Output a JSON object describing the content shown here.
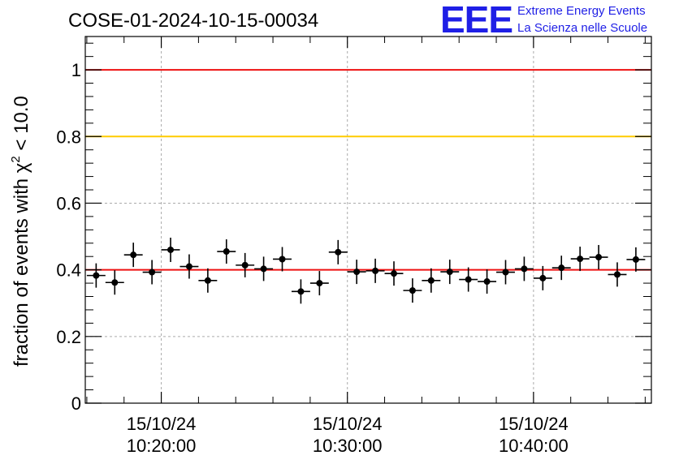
{
  "header": {
    "title": "COSE-01-2024-10-15-00034",
    "logo": {
      "letters": "EEE",
      "line1": "Extreme Energy Events",
      "line2": "La Scienza nelle Scuole",
      "color": "#1f1fe6"
    }
  },
  "chart_data": {
    "type": "scatter",
    "title": "COSE-01-2024-10-15-00034",
    "xlabel": "",
    "ylabel": "fraction of events with",
    "ylabel_symbol": "χ",
    "ylabel_sup": "2",
    "ylabel_tail": "< 10.0",
    "ylim": [
      0,
      1.1
    ],
    "yticks": [
      {
        "value": 0,
        "label": "0"
      },
      {
        "value": 0.2,
        "label": "0.2"
      },
      {
        "value": 0.4,
        "label": "0.4"
      },
      {
        "value": 0.6,
        "label": "0.6"
      },
      {
        "value": 0.8,
        "label": "0.8"
      },
      {
        "value": 1,
        "label": "1"
      }
    ],
    "xlim": [
      "2024-10-15 10:15:55",
      "2024-10-15 10:46:20"
    ],
    "xticks": [
      {
        "time": "2024-10-15 10:20:00",
        "date_label": "15/10/24",
        "time_label": "10:20:00"
      },
      {
        "time": "2024-10-15 10:30:00",
        "date_label": "15/10/24",
        "time_label": "10:30:00"
      },
      {
        "time": "2024-10-15 10:40:00",
        "date_label": "15/10/24",
        "time_label": "10:40:00"
      }
    ],
    "grid": true,
    "reference_lines": [
      {
        "y": 1.0,
        "color": "#ee1111"
      },
      {
        "y": 0.8,
        "color": "#ffcc00"
      },
      {
        "y": 0.4,
        "color": "#ee1111"
      }
    ],
    "bin_width_seconds": 60,
    "series": [
      {
        "color": "#000000",
        "points": [
          {
            "x": "2024-10-15 10:16:30",
            "y": 0.383
          },
          {
            "x": "2024-10-15 10:17:30",
            "y": 0.362
          },
          {
            "x": "2024-10-15 10:18:30",
            "y": 0.445
          },
          {
            "x": "2024-10-15 10:19:30",
            "y": 0.393
          },
          {
            "x": "2024-10-15 10:20:30",
            "y": 0.46
          },
          {
            "x": "2024-10-15 10:21:30",
            "y": 0.41
          },
          {
            "x": "2024-10-15 10:22:30",
            "y": 0.368
          },
          {
            "x": "2024-10-15 10:23:30",
            "y": 0.455
          },
          {
            "x": "2024-10-15 10:24:30",
            "y": 0.414
          },
          {
            "x": "2024-10-15 10:25:30",
            "y": 0.403
          },
          {
            "x": "2024-10-15 10:26:30",
            "y": 0.432
          },
          {
            "x": "2024-10-15 10:27:30",
            "y": 0.335
          },
          {
            "x": "2024-10-15 10:28:30",
            "y": 0.36
          },
          {
            "x": "2024-10-15 10:29:30",
            "y": 0.453
          },
          {
            "x": "2024-10-15 10:30:30",
            "y": 0.394
          },
          {
            "x": "2024-10-15 10:31:30",
            "y": 0.397
          },
          {
            "x": "2024-10-15 10:32:30",
            "y": 0.389
          },
          {
            "x": "2024-10-15 10:33:30",
            "y": 0.338
          },
          {
            "x": "2024-10-15 10:34:30",
            "y": 0.368
          },
          {
            "x": "2024-10-15 10:35:30",
            "y": 0.394
          },
          {
            "x": "2024-10-15 10:36:30",
            "y": 0.371
          },
          {
            "x": "2024-10-15 10:37:30",
            "y": 0.365
          },
          {
            "x": "2024-10-15 10:38:30",
            "y": 0.393
          },
          {
            "x": "2024-10-15 10:39:30",
            "y": 0.403
          },
          {
            "x": "2024-10-15 10:40:30",
            "y": 0.375
          },
          {
            "x": "2024-10-15 10:41:30",
            "y": 0.406
          },
          {
            "x": "2024-10-15 10:42:30",
            "y": 0.433
          },
          {
            "x": "2024-10-15 10:43:30",
            "y": 0.438
          },
          {
            "x": "2024-10-15 10:44:30",
            "y": 0.386
          },
          {
            "x": "2024-10-15 10:45:30",
            "y": 0.431
          }
        ]
      }
    ]
  }
}
